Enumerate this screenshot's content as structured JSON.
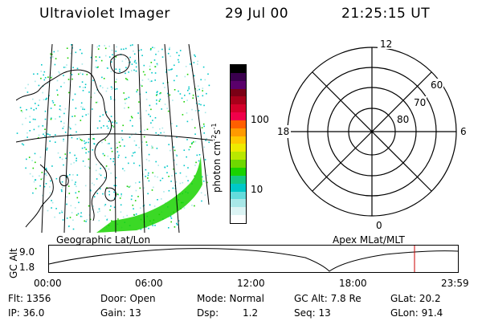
{
  "header": {
    "instrument": "Ultraviolet Imager",
    "date": "29 Jul 00",
    "time": "21:25:15 UT"
  },
  "colorbar": {
    "unit_label": "photon cm",
    "unit_exp1": "-2",
    "unit_mid": "s",
    "unit_exp2": "-1",
    "tick_100": "100",
    "tick_10": "10",
    "colors": [
      "#000000",
      "#3a004d",
      "#5a006b",
      "#7a0015",
      "#a8001a",
      "#d4002a",
      "#f0004a",
      "#ff5f00",
      "#ff9a00",
      "#ffc800",
      "#eeea00",
      "#b9e800",
      "#6ed800",
      "#19d200",
      "#15c882",
      "#00c8c8",
      "#64dcdc",
      "#a8e8e8",
      "#dcf4f4",
      "#ffffff"
    ]
  },
  "polar_plot": {
    "mlt_labels": {
      "top": "12",
      "left": "18",
      "right": "6",
      "bottom": "0"
    },
    "lat_labels": [
      "60",
      "70",
      "80"
    ]
  },
  "map": {
    "left_label": "Geographic Lat/Lon",
    "right_label": "Apex MLat/MLT",
    "data_color": "#19d200",
    "edge_color": "#00c8c8"
  },
  "altitude_panel": {
    "axis_label": "GC Alt",
    "y_ticks": [
      "9.0",
      "1.8"
    ],
    "x_ticks": [
      "00:00",
      "06:00",
      "12:00",
      "18:00",
      "23:59"
    ],
    "marker_color": "#cc0000"
  },
  "info": {
    "flt": "Flt: 1356",
    "ip": "IP: 36.0",
    "door": "Door: Open",
    "gain": "Gain: 13",
    "mode": "Mode: Normal",
    "dsp_label": "Dsp:",
    "dsp_value": "1.2",
    "gc_alt": "GC Alt: 7.8 Re",
    "seq": "Seq: 13",
    "glat": "GLat:  20.2",
    "glon": "GLon:  91.4"
  }
}
